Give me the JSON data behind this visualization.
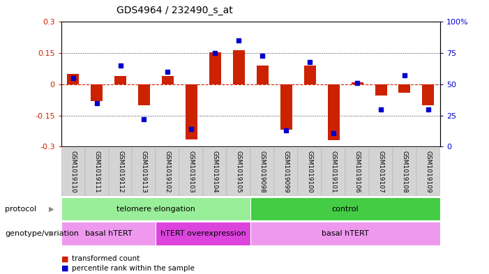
{
  "title": "GDS4964 / 232490_s_at",
  "samples": [
    "GSM1019110",
    "GSM1019111",
    "GSM1019112",
    "GSM1019113",
    "GSM1019102",
    "GSM1019103",
    "GSM1019104",
    "GSM1019105",
    "GSM1019098",
    "GSM1019099",
    "GSM1019100",
    "GSM1019101",
    "GSM1019106",
    "GSM1019107",
    "GSM1019108",
    "GSM1019109"
  ],
  "bar_values": [
    0.05,
    -0.08,
    0.04,
    -0.1,
    0.04,
    -0.265,
    0.155,
    0.165,
    0.09,
    -0.22,
    0.09,
    -0.27,
    0.01,
    -0.055,
    -0.04,
    -0.1
  ],
  "dot_values": [
    55,
    35,
    65,
    22,
    60,
    14,
    75,
    85,
    73,
    13,
    68,
    11,
    51,
    30,
    57,
    30
  ],
  "ylim": [
    -0.3,
    0.3
  ],
  "yticks_left": [
    -0.3,
    -0.15,
    0,
    0.15,
    0.3
  ],
  "yticks_right": [
    0,
    25,
    50,
    75,
    100
  ],
  "bar_color": "#cc2200",
  "dot_color": "#0000cc",
  "zero_line_color": "#cc2200",
  "dotted_line_color": "#333333",
  "protocol_groups": [
    {
      "label": "telomere elongation",
      "start": 0,
      "end": 7,
      "color": "#99ee99"
    },
    {
      "label": "control",
      "start": 8,
      "end": 15,
      "color": "#44cc44"
    }
  ],
  "genotype_groups": [
    {
      "label": "basal hTERT",
      "start": 0,
      "end": 3,
      "color": "#ee99ee"
    },
    {
      "label": "hTERT overexpression",
      "start": 4,
      "end": 7,
      "color": "#dd44dd"
    },
    {
      "label": "basal hTERT",
      "start": 8,
      "end": 15,
      "color": "#ee99ee"
    }
  ],
  "legend_items": [
    {
      "label": "transformed count",
      "color": "#cc2200"
    },
    {
      "label": "percentile rank within the sample",
      "color": "#0000cc"
    }
  ],
  "background_color": "#ffffff",
  "xlabel_area_color": "#cccccc"
}
